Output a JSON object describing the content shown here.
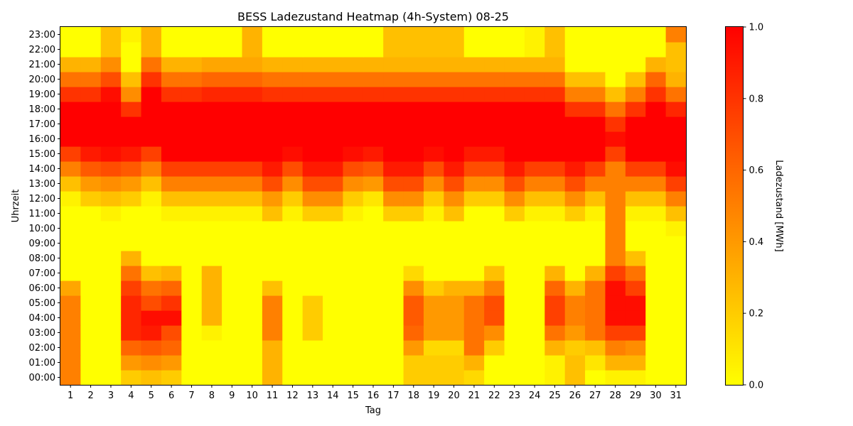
{
  "chart_data": {
    "type": "heatmap",
    "title": "BESS Ladezustand Heatmap (4h-System) 08-25",
    "xlabel": "Tag",
    "ylabel": "Uhrzeit",
    "colorbar_label": "Ladezustand [MWh]",
    "colorbar_ticks": [
      "0.0",
      "0.2",
      "0.4",
      "0.6",
      "0.8",
      "1.0"
    ],
    "vmin": 0.0,
    "vmax": 1.0,
    "colormap": [
      "#ffff00",
      "#ff8000",
      "#ff0000"
    ],
    "x_categories": [
      "1",
      "2",
      "3",
      "4",
      "5",
      "6",
      "7",
      "8",
      "9",
      "10",
      "11",
      "12",
      "13",
      "14",
      "15",
      "16",
      "17",
      "18",
      "19",
      "20",
      "21",
      "22",
      "23",
      "24",
      "25",
      "26",
      "27",
      "28",
      "29",
      "30",
      "31"
    ],
    "y_categories": [
      "00:00",
      "01:00",
      "02:00",
      "03:00",
      "04:00",
      "05:00",
      "06:00",
      "07:00",
      "08:00",
      "09:00",
      "10:00",
      "11:00",
      "12:00",
      "13:00",
      "14:00",
      "15:00",
      "16:00",
      "17:00",
      "18:00",
      "19:00",
      "20:00",
      "21:00",
      "22:00",
      "23:00"
    ],
    "values": [
      [
        0.5,
        0.0,
        0.0,
        0.2,
        0.25,
        0.2,
        0.0,
        0.0,
        0.0,
        0.0,
        0.3,
        0.0,
        0.0,
        0.0,
        0.0,
        0.0,
        0.0,
        0.2,
        0.2,
        0.2,
        0.15,
        0.0,
        0.0,
        0.0,
        0.05,
        0.25,
        0.0,
        0.05,
        0.05,
        0.0,
        0.0
      ],
      [
        0.5,
        0.0,
        0.0,
        0.4,
        0.45,
        0.4,
        0.0,
        0.0,
        0.0,
        0.0,
        0.3,
        0.0,
        0.0,
        0.0,
        0.0,
        0.0,
        0.0,
        0.2,
        0.2,
        0.2,
        0.3,
        0.0,
        0.0,
        0.0,
        0.05,
        0.25,
        0.1,
        0.3,
        0.3,
        0.0,
        0.0
      ],
      [
        0.5,
        0.0,
        0.0,
        0.6,
        0.65,
        0.6,
        0.0,
        0.0,
        0.0,
        0.0,
        0.3,
        0.0,
        0.0,
        0.0,
        0.0,
        0.0,
        0.0,
        0.4,
        0.15,
        0.15,
        0.55,
        0.2,
        0.0,
        0.0,
        0.3,
        0.2,
        0.25,
        0.5,
        0.45,
        0.0,
        0.0
      ],
      [
        0.5,
        0.0,
        0.0,
        0.85,
        0.9,
        0.7,
        0.0,
        0.05,
        0.0,
        0.0,
        0.5,
        0.0,
        0.2,
        0.0,
        0.0,
        0.0,
        0.0,
        0.6,
        0.4,
        0.4,
        0.55,
        0.45,
        0.0,
        0.0,
        0.55,
        0.4,
        0.55,
        0.75,
        0.75,
        0.0,
        0.0
      ],
      [
        0.5,
        0.0,
        0.0,
        0.85,
        0.95,
        0.95,
        0.0,
        0.3,
        0.0,
        0.0,
        0.5,
        0.0,
        0.2,
        0.0,
        0.0,
        0.0,
        0.0,
        0.65,
        0.4,
        0.4,
        0.55,
        0.7,
        0.0,
        0.0,
        0.75,
        0.5,
        0.55,
        0.95,
        0.95,
        0.0,
        0.0
      ],
      [
        0.5,
        0.0,
        0.0,
        0.85,
        0.7,
        0.8,
        0.0,
        0.3,
        0.0,
        0.0,
        0.5,
        0.0,
        0.2,
        0.0,
        0.0,
        0.0,
        0.0,
        0.65,
        0.4,
        0.4,
        0.55,
        0.7,
        0.0,
        0.0,
        0.75,
        0.5,
        0.55,
        0.95,
        0.95,
        0.0,
        0.0
      ],
      [
        0.35,
        0.0,
        0.0,
        0.75,
        0.55,
        0.6,
        0.0,
        0.3,
        0.0,
        0.0,
        0.25,
        0.0,
        0.0,
        0.0,
        0.0,
        0.0,
        0.0,
        0.45,
        0.2,
        0.3,
        0.3,
        0.5,
        0.0,
        0.0,
        0.6,
        0.3,
        0.55,
        0.95,
        0.75,
        0.0,
        0.0
      ],
      [
        0.0,
        0.0,
        0.0,
        0.55,
        0.25,
        0.3,
        0.0,
        0.3,
        0.0,
        0.0,
        0.0,
        0.0,
        0.0,
        0.0,
        0.0,
        0.0,
        0.0,
        0.15,
        0.0,
        0.0,
        0.0,
        0.25,
        0.0,
        0.0,
        0.3,
        0.0,
        0.3,
        0.75,
        0.55,
        0.0,
        0.0
      ],
      [
        0.0,
        0.0,
        0.0,
        0.3,
        0.0,
        0.0,
        0.0,
        0.0,
        0.0,
        0.0,
        0.0,
        0.0,
        0.0,
        0.0,
        0.0,
        0.0,
        0.0,
        0.0,
        0.0,
        0.0,
        0.0,
        0.0,
        0.0,
        0.0,
        0.0,
        0.0,
        0.0,
        0.5,
        0.25,
        0.0,
        0.0
      ],
      [
        0.0,
        0.0,
        0.0,
        0.0,
        0.0,
        0.0,
        0.0,
        0.0,
        0.0,
        0.0,
        0.0,
        0.0,
        0.0,
        0.0,
        0.0,
        0.0,
        0.0,
        0.0,
        0.0,
        0.0,
        0.0,
        0.0,
        0.0,
        0.0,
        0.0,
        0.0,
        0.0,
        0.5,
        0.0,
        0.0,
        0.0
      ],
      [
        0.0,
        0.0,
        0.0,
        0.0,
        0.0,
        0.0,
        0.0,
        0.0,
        0.0,
        0.0,
        0.0,
        0.0,
        0.0,
        0.0,
        0.0,
        0.0,
        0.0,
        0.0,
        0.0,
        0.0,
        0.0,
        0.0,
        0.0,
        0.0,
        0.0,
        0.0,
        0.0,
        0.5,
        0.0,
        0.0,
        0.05
      ],
      [
        0.0,
        0.0,
        0.05,
        0.0,
        0.0,
        0.05,
        0.05,
        0.05,
        0.05,
        0.05,
        0.25,
        0.05,
        0.2,
        0.2,
        0.05,
        0.0,
        0.2,
        0.2,
        0.05,
        0.25,
        0.0,
        0.0,
        0.2,
        0.05,
        0.05,
        0.2,
        0.05,
        0.5,
        0.05,
        0.05,
        0.25
      ],
      [
        0.05,
        0.2,
        0.25,
        0.2,
        0.05,
        0.25,
        0.25,
        0.25,
        0.25,
        0.25,
        0.4,
        0.2,
        0.45,
        0.45,
        0.2,
        0.1,
        0.45,
        0.45,
        0.2,
        0.45,
        0.2,
        0.2,
        0.45,
        0.25,
        0.25,
        0.45,
        0.25,
        0.5,
        0.25,
        0.25,
        0.5
      ],
      [
        0.25,
        0.4,
        0.45,
        0.4,
        0.25,
        0.5,
        0.5,
        0.5,
        0.5,
        0.5,
        0.7,
        0.45,
        0.7,
        0.7,
        0.45,
        0.4,
        0.7,
        0.7,
        0.45,
        0.7,
        0.45,
        0.45,
        0.7,
        0.5,
        0.5,
        0.7,
        0.5,
        0.5,
        0.5,
        0.5,
        0.75
      ],
      [
        0.5,
        0.65,
        0.7,
        0.65,
        0.5,
        0.75,
        0.75,
        0.75,
        0.75,
        0.75,
        0.9,
        0.7,
        0.9,
        0.9,
        0.7,
        0.65,
        0.9,
        0.9,
        0.7,
        0.9,
        0.7,
        0.7,
        0.9,
        0.75,
        0.75,
        0.9,
        0.75,
        0.5,
        0.75,
        0.75,
        0.95
      ],
      [
        0.75,
        0.9,
        0.95,
        0.9,
        0.75,
        1.0,
        1.0,
        1.0,
        1.0,
        1.0,
        1.0,
        0.95,
        1.0,
        1.0,
        0.95,
        0.9,
        1.0,
        1.0,
        0.95,
        1.0,
        0.9,
        0.9,
        1.0,
        1.0,
        1.0,
        1.0,
        1.0,
        0.75,
        1.0,
        1.0,
        1.0
      ],
      [
        1.0,
        1.0,
        1.0,
        1.0,
        1.0,
        1.0,
        1.0,
        1.0,
        1.0,
        1.0,
        1.0,
        1.0,
        1.0,
        1.0,
        1.0,
        1.0,
        1.0,
        1.0,
        1.0,
        1.0,
        1.0,
        1.0,
        1.0,
        1.0,
        1.0,
        1.0,
        1.0,
        0.95,
        1.0,
        1.0,
        1.0
      ],
      [
        1.0,
        1.0,
        1.0,
        1.0,
        1.0,
        1.0,
        1.0,
        1.0,
        1.0,
        1.0,
        1.0,
        1.0,
        1.0,
        1.0,
        1.0,
        1.0,
        1.0,
        1.0,
        1.0,
        1.0,
        1.0,
        1.0,
        1.0,
        1.0,
        1.0,
        1.0,
        1.0,
        0.8,
        1.0,
        1.0,
        1.0
      ],
      [
        1.0,
        1.0,
        1.0,
        0.8,
        1.0,
        1.0,
        1.0,
        1.0,
        1.0,
        1.0,
        1.0,
        1.0,
        1.0,
        1.0,
        1.0,
        1.0,
        1.0,
        1.0,
        1.0,
        1.0,
        1.0,
        1.0,
        1.0,
        1.0,
        1.0,
        0.8,
        0.8,
        0.55,
        0.8,
        1.0,
        0.85
      ],
      [
        0.8,
        0.8,
        0.95,
        0.45,
        1.0,
        0.8,
        0.8,
        0.85,
        0.85,
        0.85,
        0.8,
        0.8,
        0.8,
        0.8,
        0.8,
        0.8,
        0.8,
        0.8,
        0.8,
        0.8,
        0.8,
        0.8,
        0.8,
        0.8,
        0.8,
        0.5,
        0.5,
        0.25,
        0.5,
        0.8,
        0.55
      ],
      [
        0.55,
        0.55,
        0.7,
        0.25,
        0.8,
        0.55,
        0.55,
        0.6,
        0.6,
        0.6,
        0.55,
        0.55,
        0.55,
        0.55,
        0.55,
        0.55,
        0.55,
        0.55,
        0.55,
        0.55,
        0.55,
        0.55,
        0.55,
        0.55,
        0.55,
        0.25,
        0.25,
        0.0,
        0.25,
        0.6,
        0.3
      ],
      [
        0.3,
        0.3,
        0.45,
        0.0,
        0.55,
        0.3,
        0.3,
        0.35,
        0.35,
        0.35,
        0.3,
        0.3,
        0.3,
        0.3,
        0.3,
        0.3,
        0.3,
        0.3,
        0.3,
        0.3,
        0.3,
        0.3,
        0.3,
        0.3,
        0.3,
        0.0,
        0.0,
        0.0,
        0.0,
        0.3,
        0.25
      ],
      [
        0.0,
        0.0,
        0.25,
        0.0,
        0.3,
        0.0,
        0.0,
        0.0,
        0.0,
        0.3,
        0.0,
        0.0,
        0.0,
        0.0,
        0.0,
        0.0,
        0.25,
        0.25,
        0.25,
        0.25,
        0.0,
        0.0,
        0.0,
        0.05,
        0.25,
        0.0,
        0.0,
        0.0,
        0.0,
        0.0,
        0.25
      ],
      [
        0.0,
        0.0,
        0.25,
        0.05,
        0.3,
        0.0,
        0.0,
        0.0,
        0.0,
        0.3,
        0.0,
        0.0,
        0.0,
        0.0,
        0.0,
        0.0,
        0.25,
        0.25,
        0.25,
        0.25,
        0.0,
        0.0,
        0.0,
        0.05,
        0.25,
        0.0,
        0.0,
        0.0,
        0.0,
        0.0,
        0.5
      ]
    ]
  }
}
